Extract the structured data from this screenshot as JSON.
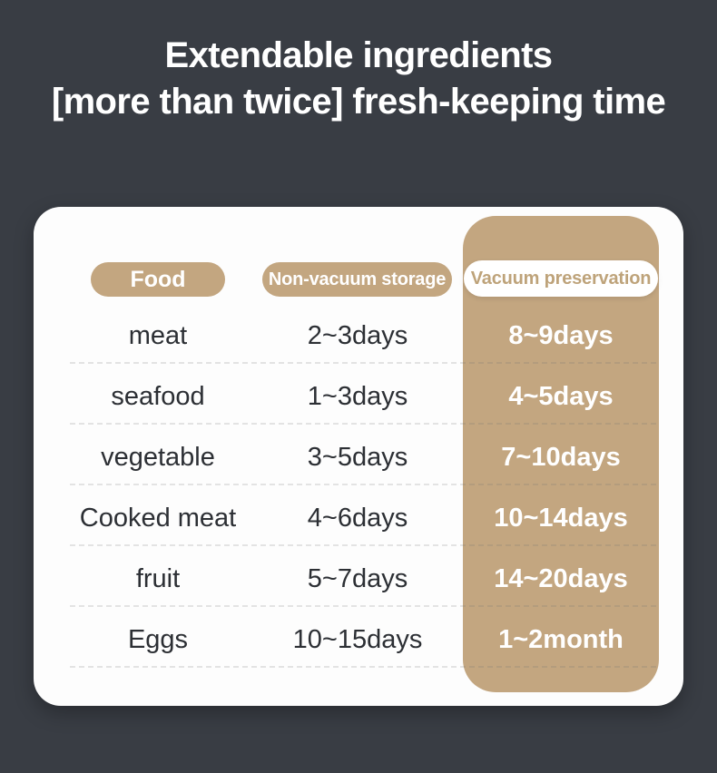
{
  "page": {
    "background_color": "#393d44",
    "card_color": "#fdfdfd",
    "accent_tan": "#c3a680",
    "vacuum_pill_text_color": "#bea37a",
    "row_text_color": "#2c2f34",
    "highlight_text_color": "#ffffff"
  },
  "title": {
    "line1": "Extendable ingredients",
    "line2": "[more than twice] fresh-keeping time"
  },
  "chart_data": {
    "type": "table",
    "title": "Extendable ingredients [more than twice] fresh-keeping time",
    "columns": [
      "Food",
      "Non-vacuum storage",
      "Vacuum preservation"
    ],
    "rows": [
      [
        "meat",
        "2~3days",
        "8~9days"
      ],
      [
        "seafood",
        "1~3days",
        "4~5days"
      ],
      [
        "vegetable",
        "3~5days",
        "7~10days"
      ],
      [
        "Cooked meat",
        "4~6days",
        "10~14days"
      ],
      [
        "fruit",
        "5~7days",
        "14~20days"
      ],
      [
        "Eggs",
        "10~15days",
        "1~2month"
      ]
    ],
    "layout": {
      "highlighted_column": "Vacuum preservation",
      "separators": "dashed horizontal lines between rows",
      "legend_position": "none",
      "grid": "off"
    }
  }
}
